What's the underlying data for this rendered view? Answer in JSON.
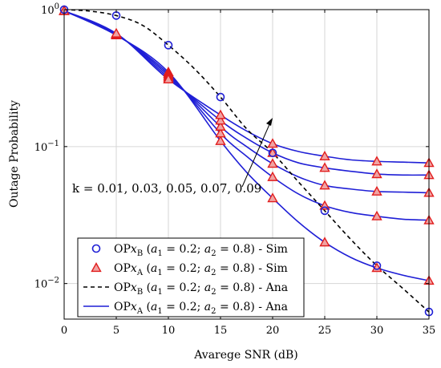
{
  "chart_data": {
    "type": "line",
    "xlabel": "Avarege SNR (dB)",
    "ylabel": "Outage Probability",
    "xlim": [
      0,
      35
    ],
    "ylim": [
      0.0055,
      1
    ],
    "yscale": "log",
    "grid": true,
    "x_ticks": [
      "0",
      "5",
      "10",
      "15",
      "20",
      "25",
      "30",
      "35"
    ],
    "y_ticks": [
      {
        "value": 1,
        "label": "10^0"
      },
      {
        "value": 0.1,
        "label": "10^−1"
      },
      {
        "value": 0.01,
        "label": "10^−2"
      }
    ],
    "annotation": "k = 0.01, 0.03, 0.05, 0.07, 0.09",
    "legend_position": "bottom-left",
    "legend": [
      {
        "name": "OP x_B (a_1 = 0.2; a_2 = 0.8) - Sim",
        "marker": "circle",
        "color": "#1f1fd6"
      },
      {
        "name": "OP x_A (a_1 = 0.2; a_2 = 0.8) - Sim",
        "marker": "triangle",
        "color": "#e11d1d"
      },
      {
        "name": "OP x_B (a_1 = 0.2; a_2 = 0.8) - Ana",
        "line": "dashed",
        "color": "#000000"
      },
      {
        "name": "OP x_A (a_1 = 0.2; a_2 = 0.8) - Ana",
        "line": "solid",
        "color": "#1f1fd6"
      }
    ],
    "x": [
      0,
      5,
      10,
      15,
      20,
      25,
      30,
      35
    ],
    "series_xb_ana": {
      "x": [
        0,
        2.5,
        5,
        7.5,
        10,
        12.5,
        15,
        17.5,
        20,
        22.5,
        25,
        27.5,
        30,
        32.5,
        35
      ],
      "values": [
        1.0,
        0.975,
        0.905,
        0.77,
        0.55,
        0.37,
        0.23,
        0.135,
        0.09,
        0.055,
        0.034,
        0.021,
        0.0135,
        0.0092,
        0.0062
      ]
    },
    "series_xb_sim": {
      "x": [
        0,
        5,
        10,
        15,
        20,
        25,
        30,
        35
      ],
      "values": [
        1.0,
        0.905,
        0.55,
        0.23,
        0.09,
        0.034,
        0.0135,
        0.0062
      ]
    },
    "series_xa": [
      {
        "k": "0.01",
        "x": [
          0,
          5,
          10,
          15,
          17.5,
          20,
          22.5,
          25,
          27.5,
          30,
          32.5,
          35
        ],
        "values": [
          0.98,
          0.65,
          0.35,
          0.11,
          0.065,
          0.042,
          0.028,
          0.02,
          0.0155,
          0.013,
          0.0115,
          0.0105
        ]
      },
      {
        "k": "0.03",
        "x": [
          0,
          5,
          10,
          15,
          17.5,
          20,
          22.5,
          25,
          27.5,
          30,
          32.5,
          35
        ],
        "values": [
          0.98,
          0.655,
          0.34,
          0.125,
          0.085,
          0.06,
          0.045,
          0.037,
          0.033,
          0.031,
          0.0295,
          0.029
        ]
      },
      {
        "k": "0.05",
        "x": [
          0,
          5,
          10,
          15,
          17.5,
          20,
          22.5,
          25,
          27.5,
          30,
          32.5,
          35
        ],
        "values": [
          0.98,
          0.66,
          0.33,
          0.14,
          0.1,
          0.075,
          0.06,
          0.052,
          0.049,
          0.047,
          0.0465,
          0.046
        ]
      },
      {
        "k": "0.07",
        "x": [
          0,
          5,
          10,
          15,
          17.5,
          20,
          22.5,
          25,
          27.5,
          30,
          32.5,
          35
        ],
        "values": [
          0.98,
          0.665,
          0.32,
          0.155,
          0.115,
          0.09,
          0.076,
          0.07,
          0.066,
          0.063,
          0.062,
          0.062
        ]
      },
      {
        "k": "0.09",
        "x": [
          0,
          5,
          10,
          15,
          17.5,
          20,
          22.5,
          25,
          27.5,
          30,
          32.5,
          35
        ],
        "values": [
          0.98,
          0.67,
          0.31,
          0.17,
          0.13,
          0.105,
          0.092,
          0.085,
          0.08,
          0.078,
          0.077,
          0.076
        ]
      }
    ]
  },
  "colors": {
    "blue": "#1f1fd6",
    "red": "#e11d1d",
    "black": "#000000",
    "grid": "#d6d6d6"
  }
}
